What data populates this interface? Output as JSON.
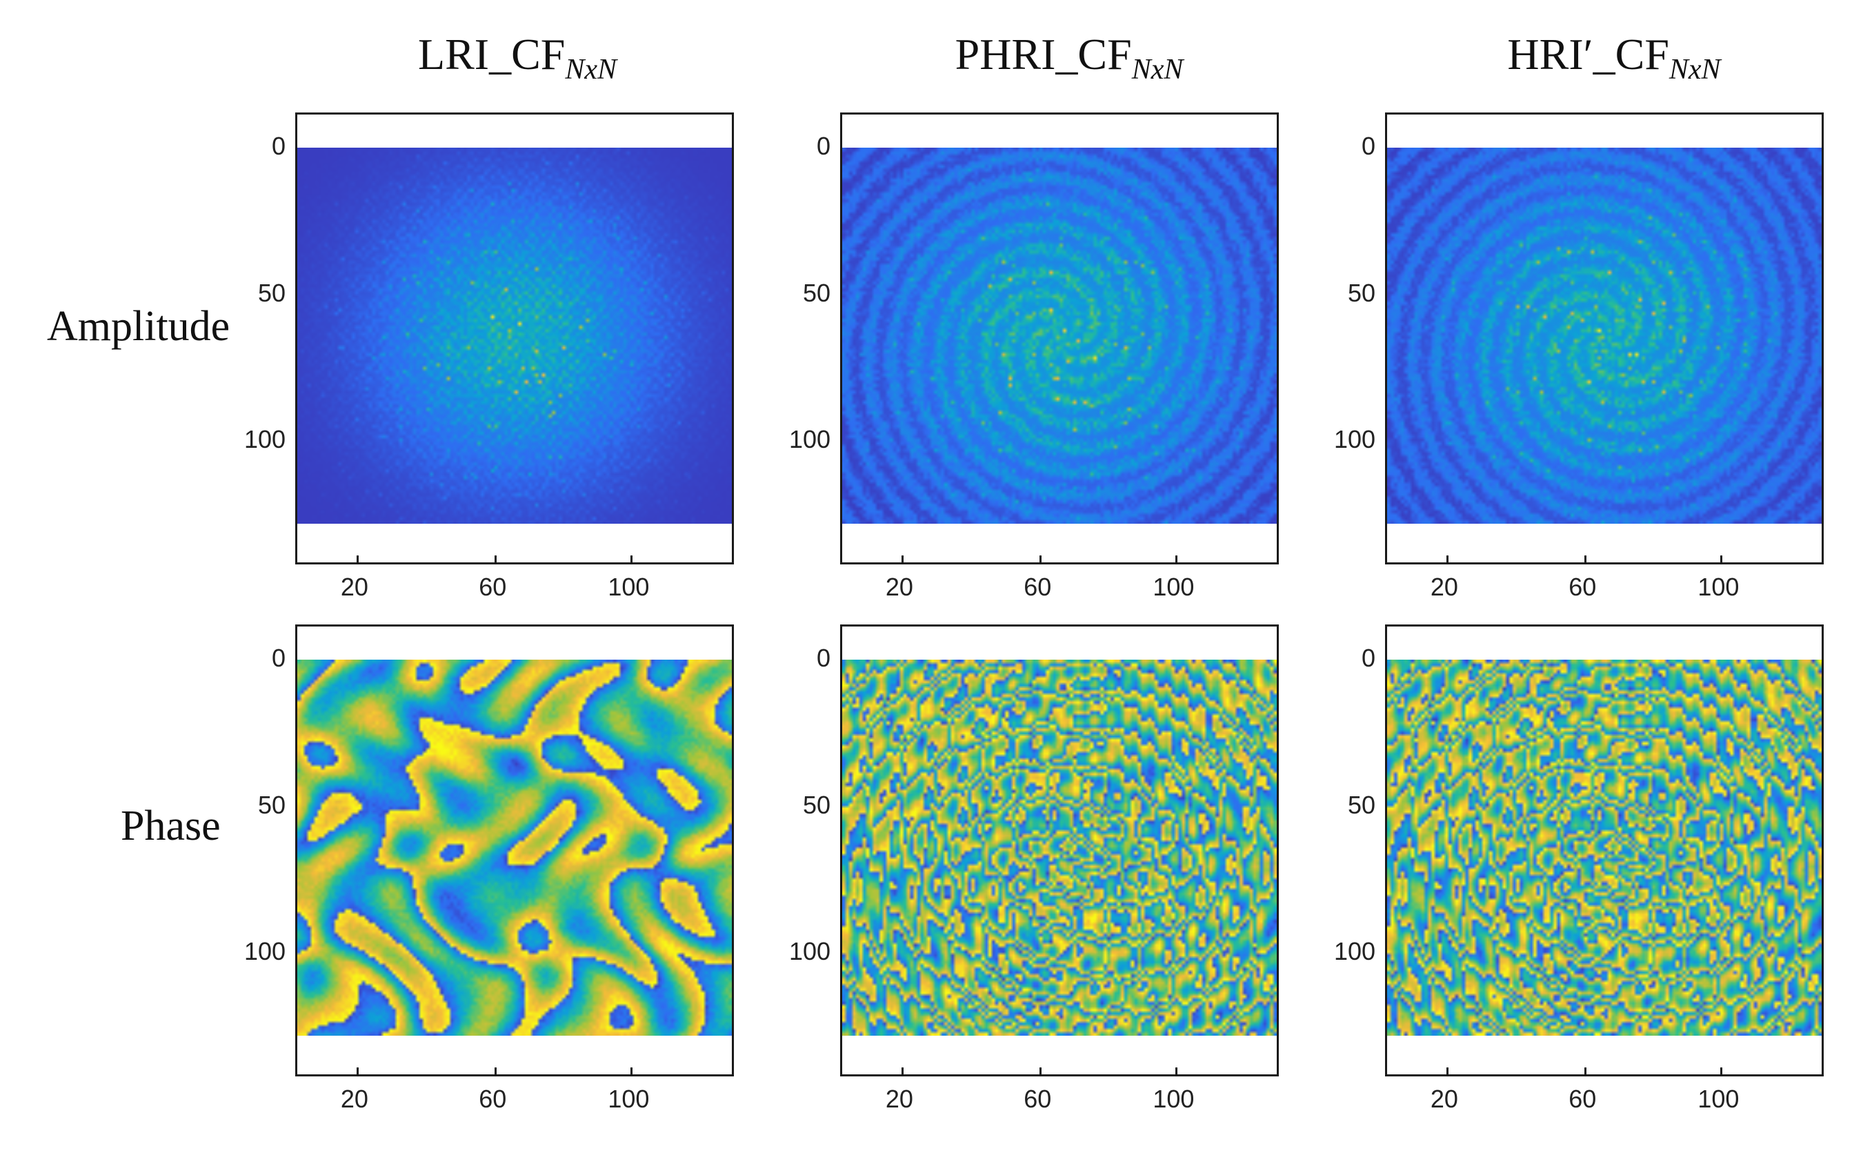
{
  "columns": [
    {
      "title_main": "LRI_CF",
      "title_sub": "NxN"
    },
    {
      "title_main": "PHRI_CF",
      "title_sub": "NxN"
    },
    {
      "title_main": "HRI′_CF",
      "title_sub": "NxN"
    }
  ],
  "rows": [
    {
      "label": "Amplitude"
    },
    {
      "label": "Phase"
    }
  ],
  "axes": {
    "y_ticks": [
      "0",
      "50",
      "100"
    ],
    "x_ticks": [
      "20",
      "60",
      "100"
    ],
    "colormap": "parula",
    "colormap_colors": [
      "#3e26a8",
      "#2f6df2",
      "#0ca3d6",
      "#2ac08f",
      "#a5c53a",
      "#f4ba3a",
      "#f9fb14"
    ]
  }
}
